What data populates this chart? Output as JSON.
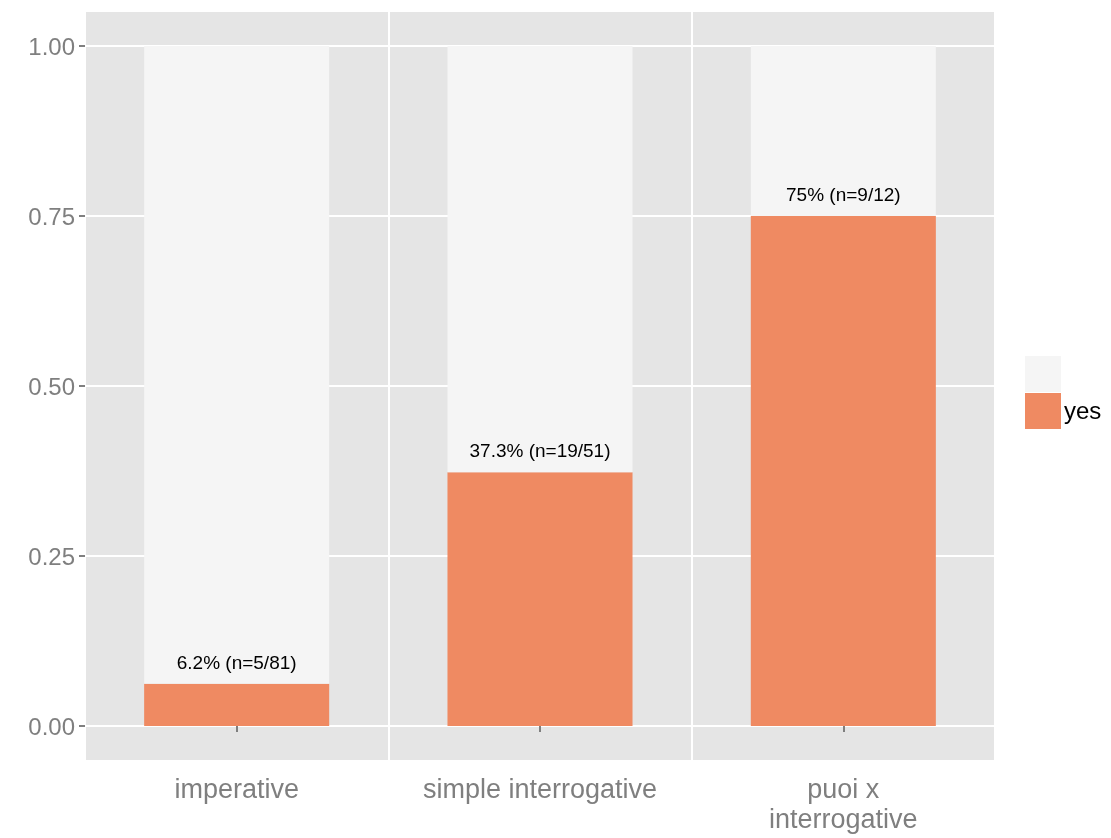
{
  "chart_data": {
    "type": "bar",
    "stacked": true,
    "categories": [
      "imperative",
      "simple interrogative",
      "puoi x\ninterrogative"
    ],
    "series": [
      {
        "name": "yes",
        "color": "#ef8a62",
        "values": [
          0.062,
          0.373,
          0.75
        ],
        "value_labels": [
          "6.2% (n=5/81)",
          "37.3% (n=19/51)",
          "75% (n=9/12)"
        ]
      },
      {
        "color": "#f5f5f5",
        "values": [
          0.938,
          0.627,
          0.25
        ]
      }
    ],
    "ylim": [
      -0.05,
      1.05
    ],
    "yticks": [
      {
        "value": 0,
        "label": "0.00"
      },
      {
        "value": 0.25,
        "label": "0.25"
      },
      {
        "value": 0.5,
        "label": "0.50"
      },
      {
        "value": 0.75,
        "label": "0.75"
      },
      {
        "value": 1,
        "label": "1.00"
      }
    ],
    "grid": true,
    "legend": "right"
  }
}
